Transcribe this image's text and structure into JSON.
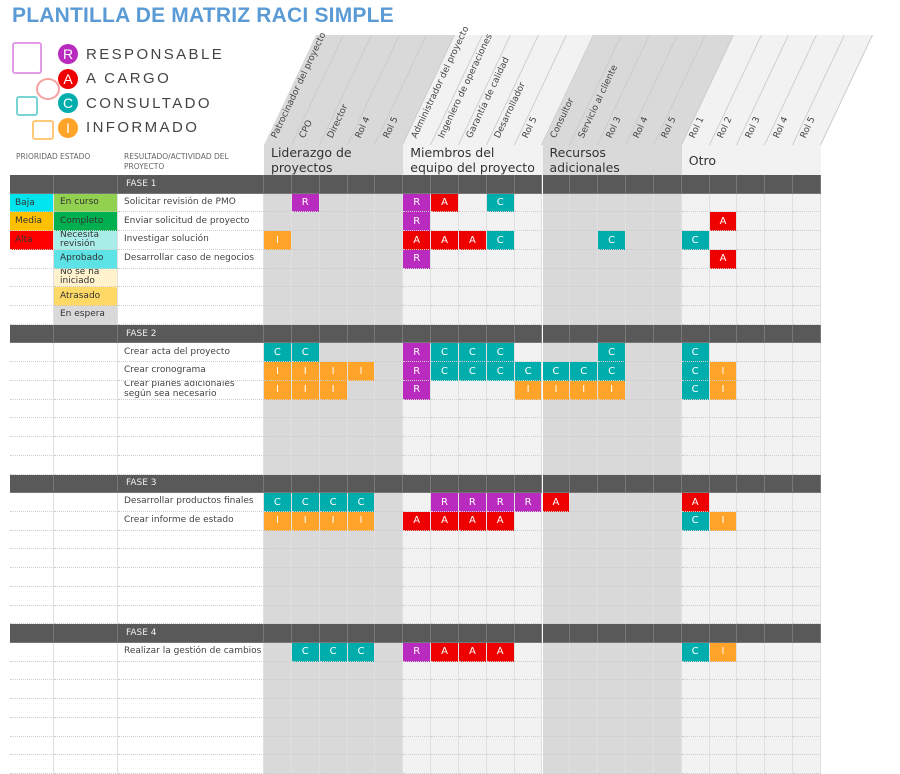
{
  "title": "PLANTILLA DE MATRIZ RACI SIMPLE",
  "legend": [
    {
      "letter": "R",
      "label": "RESPONSABLE",
      "color": "#b92bbf",
      "icon": "document-person-check-icon",
      "iconColor": "#e39be6"
    },
    {
      "letter": "A",
      "label": "A CARGO",
      "color": "#ee0000",
      "icon": "magnifier-person-icon",
      "iconColor": "#f7a0a0"
    },
    {
      "letter": "C",
      "label": "CONSULTADO",
      "color": "#00adad",
      "icon": "id-card-download-icon",
      "iconColor": "#79d5d5"
    },
    {
      "letter": "I",
      "label": "INFORMADO",
      "color": "#ffa329",
      "icon": "id-card-upload-icon",
      "iconColor": "#ffc978"
    }
  ],
  "raci_colors": {
    "R": "#b92bbf",
    "A": "#ee0000",
    "C": "#00adad",
    "I": "#ffa329"
  },
  "left_headers": {
    "priority": "PRIORIDAD",
    "status": "ESTADO",
    "activity": "RESULTADO/ACTIVIDAD DEL PROYECTO"
  },
  "groups": [
    {
      "label": "Liderazgo de proyectos",
      "bg": "#d9d9d9",
      "roles": [
        "Patrocinador del proyecto",
        "CPO",
        "Director",
        "Rol 4",
        "Rol 5"
      ]
    },
    {
      "label": "Miembros del equipo del proyecto",
      "bg": "#f2f2f2",
      "roles": [
        "Administrador del proyecto",
        "Ingeniero de operaciones",
        "Garantía de calidad",
        "Desarrollador",
        "Rol 5"
      ]
    },
    {
      "label": "Recursos adicionales",
      "bg": "#d9d9d9",
      "roles": [
        "Consultor",
        "Servicio al cliente",
        "Rol 3",
        "Rol 4",
        "Rol 5"
      ]
    },
    {
      "label": "Otro",
      "bg": "#f2f2f2",
      "roles": [
        "Rol 1",
        "Rol 2",
        "Rol 3",
        "Rol 4",
        "Rol 5"
      ]
    }
  ],
  "priority_colors": {
    "Baja": "#00e5ee",
    "Media": "#ffc000",
    "Alta": "#ff0000"
  },
  "status_colors": {
    "En curso": "#92d050",
    "Completo": "#00b050",
    "Necesita revisión": "#a9ede8",
    "Aprobado": "#5de3e6",
    "No se ha iniciado": "#fff2cc",
    "Atrasado": "#ffd966",
    "En espera": "#d9d9d9"
  },
  "phases": [
    {
      "label": "FASE 1",
      "rows": [
        {
          "priority": "Baja",
          "status": "En curso",
          "activity": "Solicitar revisión de PMO",
          "raci": [
            "",
            "R",
            "",
            "",
            "",
            "R",
            "A",
            "",
            "C",
            "",
            "",
            "",
            "",
            "",
            "",
            "",
            "",
            "",
            "",
            ""
          ]
        },
        {
          "priority": "Media",
          "status": "Completo",
          "activity": "Enviar solicitud de proyecto",
          "raci": [
            "",
            "",
            "",
            "",
            "",
            "R",
            "",
            "",
            "",
            "",
            "",
            "",
            "",
            "",
            "",
            "",
            "A",
            "",
            "",
            ""
          ]
        },
        {
          "priority": "Alta",
          "status": "Necesita revisión",
          "activity": "Investigar solución",
          "raci": [
            "I",
            "",
            "",
            "",
            "",
            "A",
            "A",
            "A",
            "C",
            "",
            "",
            "",
            "C",
            "",
            "",
            "C",
            "",
            "",
            "",
            ""
          ]
        },
        {
          "priority": "",
          "status": "Aprobado",
          "activity": "Desarrollar caso de negocios",
          "raci": [
            "",
            "",
            "",
            "",
            "",
            "R",
            "",
            "",
            "",
            "",
            "",
            "",
            "",
            "",
            "",
            "",
            "A",
            "",
            "",
            ""
          ]
        },
        {
          "priority": "",
          "status": "No se ha iniciado",
          "activity": "",
          "raci": []
        },
        {
          "priority": "",
          "status": "Atrasado",
          "activity": "",
          "raci": []
        },
        {
          "priority": "",
          "status": "En espera",
          "activity": "",
          "raci": []
        }
      ]
    },
    {
      "label": "FASE 2",
      "rows": [
        {
          "priority": "",
          "status": "",
          "activity": "Crear acta del proyecto",
          "raci": [
            "C",
            "C",
            "",
            "",
            "",
            "R",
            "C",
            "C",
            "C",
            "",
            "",
            "",
            "C",
            "",
            "",
            "C",
            "",
            "",
            "",
            ""
          ]
        },
        {
          "priority": "",
          "status": "",
          "activity": "Crear cronograma",
          "raci": [
            "I",
            "I",
            "I",
            "I",
            "",
            "R",
            "C",
            "C",
            "C",
            "C",
            "C",
            "C",
            "C",
            "",
            "",
            "C",
            "I",
            "",
            "",
            ""
          ]
        },
        {
          "priority": "",
          "status": "",
          "activity": "Crear planes adicionales según sea necesario",
          "raci": [
            "I",
            "I",
            "I",
            "",
            "",
            "R",
            "",
            "",
            "",
            "I",
            "I",
            "I",
            "I",
            "",
            "",
            "C",
            "I",
            "",
            "",
            ""
          ]
        },
        {
          "priority": "",
          "status": "",
          "activity": "",
          "raci": []
        },
        {
          "priority": "",
          "status": "",
          "activity": "",
          "raci": []
        },
        {
          "priority": "",
          "status": "",
          "activity": "",
          "raci": []
        },
        {
          "priority": "",
          "status": "",
          "activity": "",
          "raci": []
        }
      ]
    },
    {
      "label": "FASE 3",
      "rows": [
        {
          "priority": "",
          "status": "",
          "activity": "Desarrollar productos finales",
          "raci": [
            "C",
            "C",
            "C",
            "C",
            "",
            "",
            "R",
            "R",
            "R",
            "R",
            "A",
            "",
            "",
            "",
            "",
            "A",
            "",
            "",
            "",
            ""
          ]
        },
        {
          "priority": "",
          "status": "",
          "activity": "Crear informe de estado",
          "raci": [
            "I",
            "I",
            "I",
            "I",
            "",
            "A",
            "A",
            "A",
            "A",
            "",
            "",
            "",
            "",
            "",
            "",
            "C",
            "I",
            "",
            "",
            ""
          ]
        },
        {
          "priority": "",
          "status": "",
          "activity": "",
          "raci": []
        },
        {
          "priority": "",
          "status": "",
          "activity": "",
          "raci": []
        },
        {
          "priority": "",
          "status": "",
          "activity": "",
          "raci": []
        },
        {
          "priority": "",
          "status": "",
          "activity": "",
          "raci": []
        },
        {
          "priority": "",
          "status": "",
          "activity": "",
          "raci": []
        }
      ]
    },
    {
      "label": "FASE 4",
      "rows": [
        {
          "priority": "",
          "status": "",
          "activity": "Realizar la gestión de cambios",
          "raci": [
            "",
            "C",
            "C",
            "C",
            "",
            "R",
            "A",
            "A",
            "A",
            "",
            "",
            "",
            "",
            "",
            "",
            "C",
            "I",
            "",
            "",
            ""
          ]
        },
        {
          "priority": "",
          "status": "",
          "activity": "",
          "raci": []
        },
        {
          "priority": "",
          "status": "",
          "activity": "",
          "raci": []
        },
        {
          "priority": "",
          "status": "",
          "activity": "",
          "raci": []
        },
        {
          "priority": "",
          "status": "",
          "activity": "",
          "raci": []
        },
        {
          "priority": "",
          "status": "",
          "activity": "",
          "raci": []
        },
        {
          "priority": "",
          "status": "",
          "activity": "",
          "raci": []
        }
      ]
    }
  ]
}
